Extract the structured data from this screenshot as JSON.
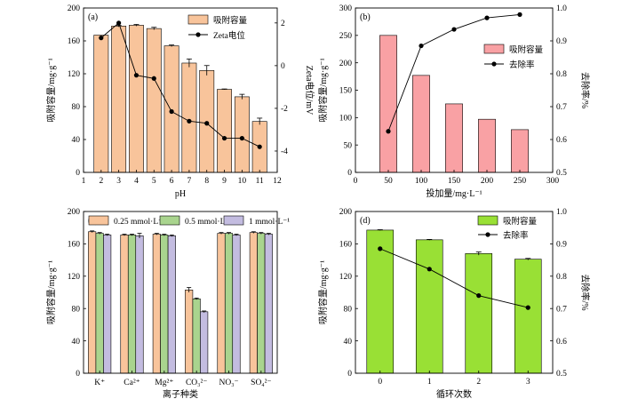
{
  "chart_data": [
    {
      "panel": "(a)",
      "type": "bar",
      "xlabel": "pH",
      "ylabel": "吸附容量/mg·g⁻¹",
      "y2label": "Zeta电位/mV",
      "xlim": [
        1,
        12
      ],
      "ylim": [
        0,
        200
      ],
      "y2lim": [
        -5,
        2.7
      ],
      "xticks": [
        "1",
        "2",
        "3",
        "4",
        "5",
        "6",
        "7",
        "8",
        "9",
        "10",
        "11",
        "12"
      ],
      "yticks": [
        "0",
        "40",
        "80",
        "120",
        "160",
        "200"
      ],
      "y2ticks": [
        "-4",
        "-2",
        "0",
        "2"
      ],
      "x": [
        2,
        3,
        4,
        5,
        6,
        7,
        8,
        9,
        10,
        11
      ],
      "series": [
        {
          "name": "吸附容量",
          "kind": "bar",
          "axis": "left",
          "color": "#f8c49b",
          "values": [
            167,
            178,
            179,
            175,
            154,
            133,
            124,
            101,
            92,
            62
          ],
          "errors": [
            0,
            1,
            1,
            1.5,
            1,
            5,
            6,
            0.5,
            3,
            4
          ]
        },
        {
          "name": "Zeta电位",
          "kind": "line",
          "axis": "right",
          "color": "#000000",
          "values": [
            1.3,
            2.0,
            -0.45,
            -0.6,
            -2.15,
            -2.6,
            -2.7,
            -3.4,
            -3.4,
            -3.8
          ]
        }
      ],
      "legend_position": "top-right"
    },
    {
      "panel": "(b)",
      "type": "bar",
      "xlabel": "投加量/mg·L⁻¹",
      "ylabel": "吸附容量/mg·g⁻¹",
      "y2label": "去除率/%",
      "xlim": [
        0,
        300
      ],
      "ylim": [
        0,
        300
      ],
      "y2lim": [
        0.5,
        1.0
      ],
      "xticks": [
        "0",
        "50",
        "100",
        "150",
        "200",
        "250",
        "300"
      ],
      "yticks": [
        "0",
        "50",
        "100",
        "150",
        "200",
        "250",
        "300"
      ],
      "y2ticks": [
        "0.5",
        "0.6",
        "0.7",
        "0.8",
        "0.9",
        "1.0"
      ],
      "x": [
        50,
        100,
        150,
        200,
        250
      ],
      "series": [
        {
          "name": "吸附容量",
          "kind": "bar",
          "axis": "left",
          "color": "#f9a1a4",
          "values": [
            250,
            177,
            125,
            97,
            78
          ]
        },
        {
          "name": "去除率",
          "kind": "line",
          "axis": "right",
          "color": "#000000",
          "values": [
            0.625,
            0.885,
            0.935,
            0.97,
            0.98
          ]
        }
      ],
      "legend_position": "middle-right"
    },
    {
      "panel": "(c)",
      "type": "bar",
      "xlabel": "离子种类",
      "ylabel": "吸附容量/mg·g⁻¹",
      "ylim": [
        0,
        200
      ],
      "yticks": [
        "0",
        "40",
        "80",
        "120",
        "160",
        "200"
      ],
      "categories": [
        "K⁺",
        "Ca²⁺",
        "Mg²⁺",
        "CO₃²⁻",
        "NO₃⁻",
        "SO₄²⁻"
      ],
      "series": [
        {
          "name": "0.25 mmol·L⁻¹",
          "color": "#f8c49b",
          "values": [
            175,
            171,
            172,
            103,
            173,
            174
          ],
          "errors": [
            1,
            1,
            1,
            3,
            1,
            1
          ]
        },
        {
          "name": "0.5 mmol·L⁻¹",
          "color": "#a9d48e",
          "values": [
            173,
            171,
            171,
            92,
            173,
            173
          ],
          "errors": [
            1,
            1,
            1,
            1,
            1,
            1
          ]
        },
        {
          "name": "1 mmol·L⁻¹",
          "color": "#c3bce0",
          "values": [
            171,
            170,
            170,
            76,
            171,
            172
          ],
          "errors": [
            1,
            3,
            1,
            1,
            1,
            1
          ]
        }
      ],
      "legend_position": "top"
    },
    {
      "panel": "(d)",
      "type": "bar",
      "xlabel": "循环次数",
      "ylabel": "吸附容量/mg·g⁻¹",
      "y2label": "去除率/%",
      "xlim": [
        -0.5,
        3.5
      ],
      "ylim": [
        0,
        200
      ],
      "y2lim": [
        0.5,
        1.0
      ],
      "xticks": [
        "0",
        "1",
        "2",
        "3"
      ],
      "yticks": [
        "0",
        "40",
        "80",
        "120",
        "160",
        "200"
      ],
      "y2ticks": [
        "0.5",
        "0.6",
        "0.7",
        "0.8",
        "0.9",
        "1.0"
      ],
      "x": [
        0,
        1,
        2,
        3
      ],
      "series": [
        {
          "name": "吸附容量",
          "kind": "bar",
          "axis": "left",
          "color": "#99e035",
          "values": [
            177,
            165,
            148,
            141
          ],
          "errors": [
            0.5,
            0.5,
            2,
            1
          ]
        },
        {
          "name": "去除率",
          "kind": "line",
          "axis": "right",
          "color": "#000000",
          "values": [
            0.885,
            0.822,
            0.74,
            0.703
          ]
        }
      ],
      "legend_position": "top-right"
    }
  ]
}
